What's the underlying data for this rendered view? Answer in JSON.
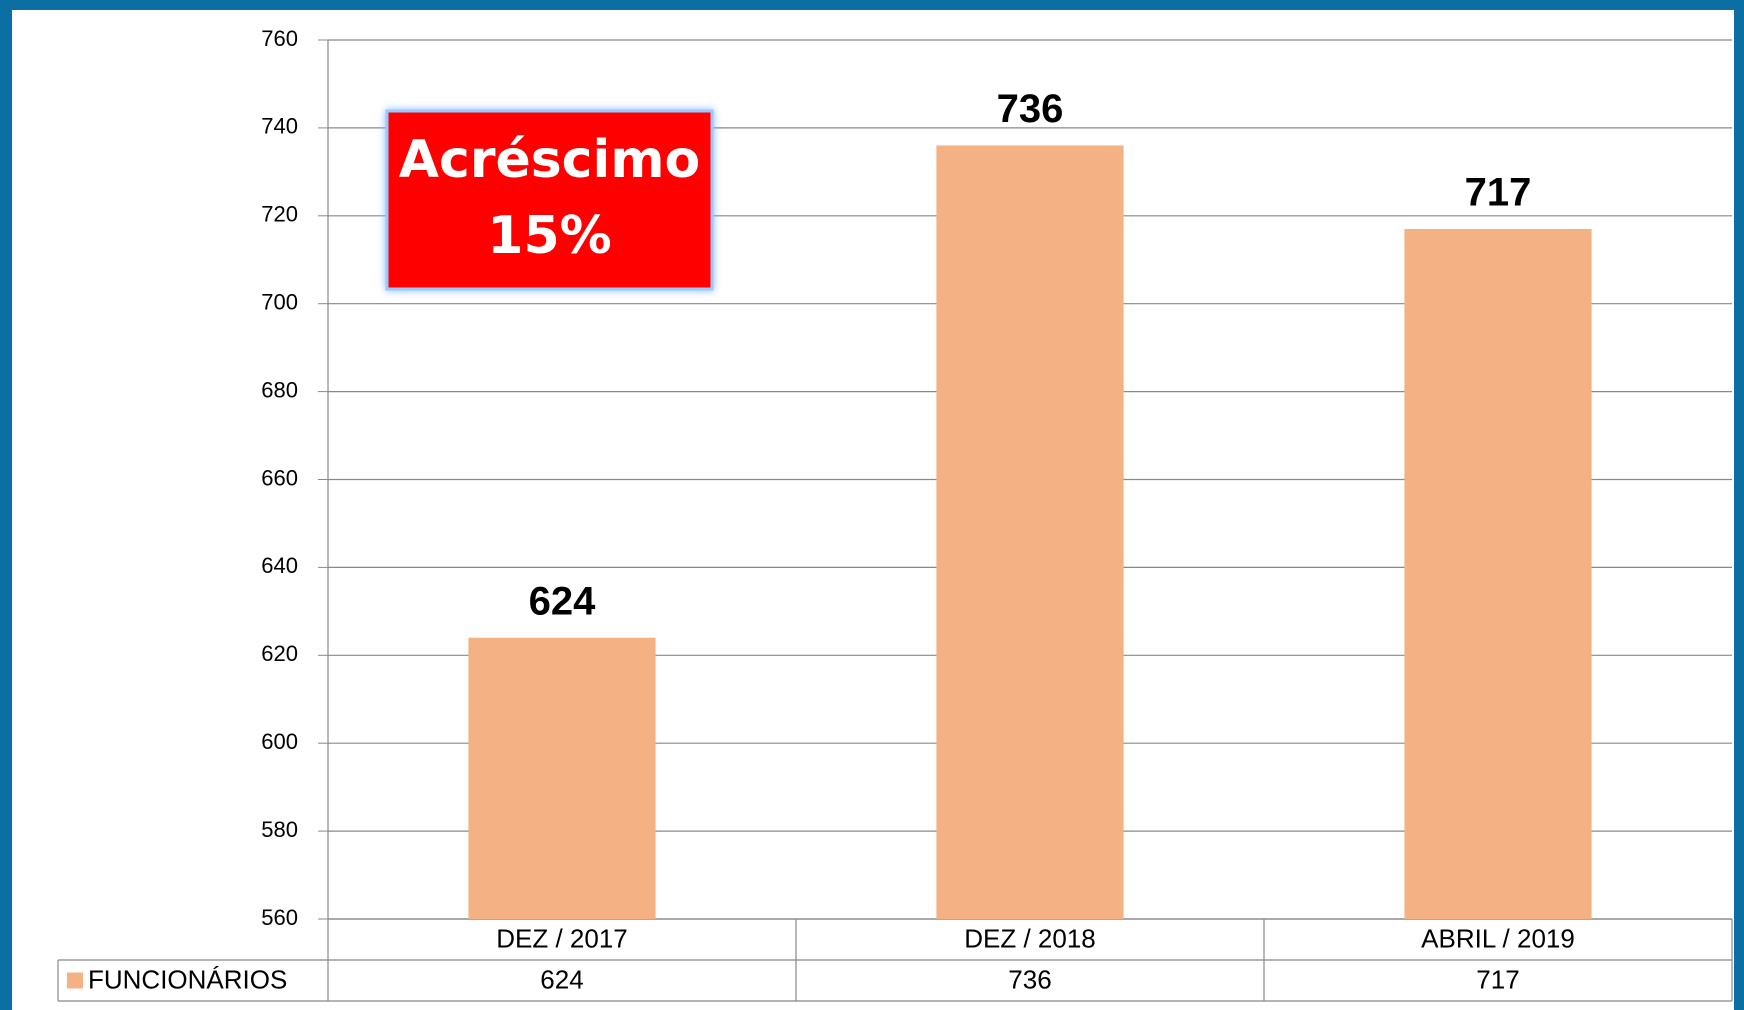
{
  "chart_data": {
    "type": "bar",
    "categories": [
      "DEZ / 2017",
      "DEZ / 2018",
      "ABRIL / 2019"
    ],
    "series": [
      {
        "name": "FUNCIONÁRIOS",
        "color": "#f4b183",
        "values": [
          624,
          736,
          717
        ]
      }
    ],
    "ylim": [
      560,
      760
    ],
    "yticks": [
      560,
      580,
      600,
      620,
      640,
      660,
      680,
      700,
      720,
      740,
      760
    ],
    "grid": true,
    "data_table": true,
    "annotation": [
      "Acréscimo",
      "15%"
    ]
  }
}
